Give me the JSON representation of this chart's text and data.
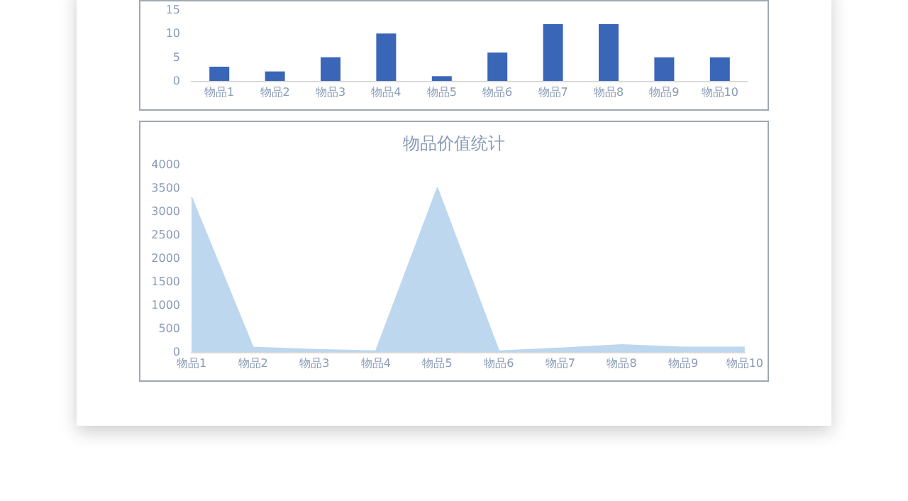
{
  "chart_data": [
    {
      "type": "bar",
      "categories": [
        "物品1",
        "物品2",
        "物品3",
        "物品4",
        "物品5",
        "物品6",
        "物品7",
        "物品8",
        "物品9",
        "物品10"
      ],
      "values": [
        3,
        2,
        5,
        10,
        1,
        6,
        12,
        12,
        5,
        5
      ],
      "color": "#3a66b8",
      "ylim": [
        0,
        15
      ],
      "yticks": [
        0,
        5,
        10,
        15
      ],
      "grid": false
    },
    {
      "type": "area",
      "title": "物品价值统计",
      "categories": [
        "物品1",
        "物品2",
        "物品3",
        "物品4",
        "物品5",
        "物品6",
        "物品7",
        "物品8",
        "物品9",
        "物品10"
      ],
      "values": [
        3300,
        100,
        50,
        20,
        3500,
        20,
        80,
        150,
        100,
        100
      ],
      "color": "#bdd7ee",
      "ylim": [
        0,
        4000
      ],
      "yticks": [
        0,
        500,
        1000,
        1500,
        2000,
        2500,
        3000,
        3500,
        4000
      ],
      "grid": false
    }
  ]
}
